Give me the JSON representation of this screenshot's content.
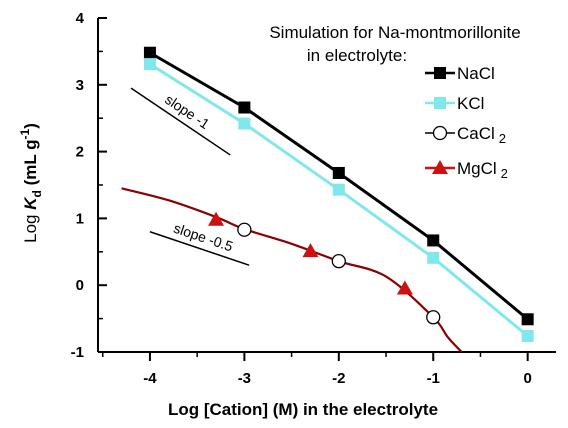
{
  "chart_data": {
    "type": "line",
    "title_lines": [
      "Simulation for Na-montmorillonite",
      "in electrolyte:"
    ],
    "xlabel": "Log [Cation] (M) in the electrolyte",
    "ylabel": {
      "pre": "Log ",
      "K": "K",
      "sub": "d",
      "post": " (mL g",
      "sup": "-1",
      "end": ")"
    },
    "xlim": [
      -4.55,
      0.3
    ],
    "ylim": [
      -1,
      4
    ],
    "xticks": [
      "-4",
      "-3",
      "-2",
      "-1",
      "0"
    ],
    "yticks": [
      "4",
      "3",
      "2",
      "1",
      "0",
      "-1"
    ],
    "xtick_values": [
      -4,
      -3,
      -2,
      -1,
      0
    ],
    "ytick_values": [
      4,
      3,
      2,
      1,
      0,
      -1
    ],
    "series": [
      {
        "name": "NaCl",
        "sub": "",
        "color": "#000000",
        "marker": "square",
        "points": [
          [
            -4,
            3.48
          ],
          [
            -3,
            2.66
          ],
          [
            -2,
            1.68
          ],
          [
            -1,
            0.67
          ],
          [
            0,
            -0.51
          ]
        ]
      },
      {
        "name": "KCl",
        "sub": "",
        "color": "#80e8ec",
        "marker": "square",
        "points": [
          [
            -4,
            3.31
          ],
          [
            -3,
            2.42
          ],
          [
            -2,
            1.43
          ],
          [
            -1,
            0.41
          ],
          [
            0,
            -0.76
          ]
        ]
      },
      {
        "name": "CaCl",
        "sub": "2",
        "color": "#000000",
        "marker": "circle",
        "points": [
          [
            -3,
            0.83
          ],
          [
            -2,
            0.36
          ],
          [
            -1,
            -0.48
          ]
        ]
      },
      {
        "name": "MgCl",
        "sub": "2",
        "color": "#cc1111",
        "marker": "triangle",
        "points": [
          [
            -3.3,
            0.98
          ],
          [
            -2.3,
            0.51
          ],
          [
            -1.3,
            -0.05
          ]
        ]
      }
    ],
    "curve": {
      "color": "#8b0000",
      "points": [
        [
          -4.3,
          1.45
        ],
        [
          -3.8,
          1.27
        ],
        [
          -3.3,
          1.02
        ],
        [
          -3.0,
          0.84
        ],
        [
          -2.5,
          0.62
        ],
        [
          -2.0,
          0.36
        ],
        [
          -1.5,
          0.13
        ],
        [
          -1.0,
          -0.48
        ],
        [
          -0.85,
          -0.77
        ],
        [
          -0.7,
          -1.0
        ]
      ]
    },
    "annotations": [
      {
        "text": "slope -1",
        "line": [
          [
            -4.2,
            2.95
          ],
          [
            -3.15,
            1.95
          ]
        ]
      },
      {
        "text": "slope -0.5",
        "line": [
          [
            -4.0,
            0.8
          ],
          [
            -2.95,
            0.3
          ]
        ]
      }
    ],
    "legend_position": "top-right",
    "grid": false
  }
}
